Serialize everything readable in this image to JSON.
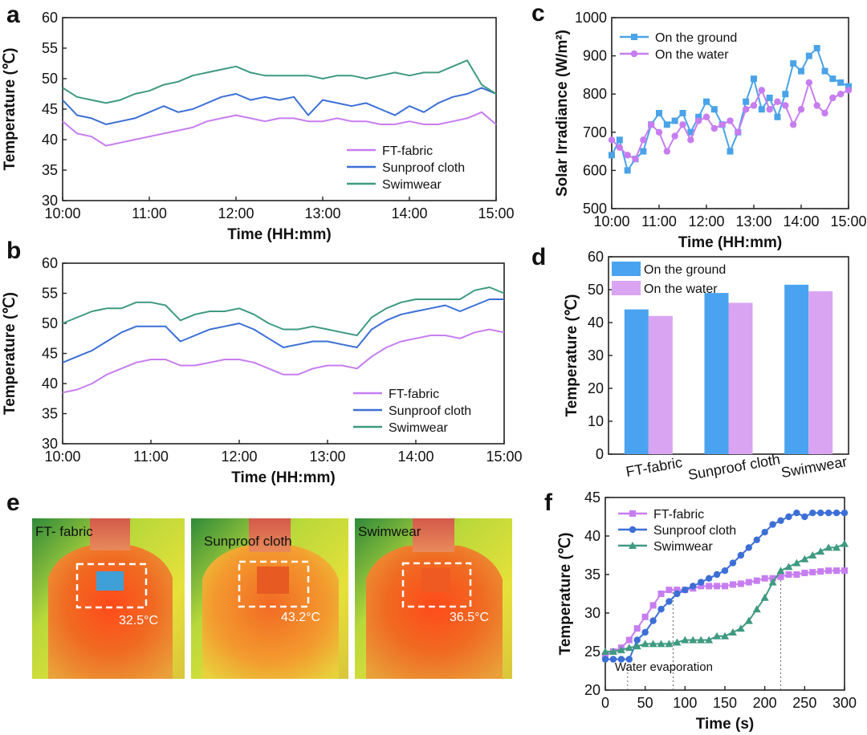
{
  "chart_data": [
    {
      "panel": "a",
      "type": "line",
      "xlabel": "Time (HH:mm)",
      "ylabel": "Temperature (℃)",
      "xticks": [
        "10:00",
        "11:00",
        "12:00",
        "13:00",
        "14:00",
        "15:00"
      ],
      "xlim": [
        0,
        300
      ],
      "ylim": [
        30,
        60
      ],
      "yticks": [
        30,
        35,
        40,
        45,
        50,
        55,
        60
      ],
      "legend_position": "bottom-right",
      "series": [
        {
          "name": "FT-fabric",
          "color": "#c77df0",
          "x": [
            0,
            10,
            20,
            30,
            40,
            50,
            60,
            70,
            80,
            90,
            100,
            110,
            120,
            130,
            140,
            150,
            160,
            170,
            180,
            190,
            200,
            210,
            220,
            230,
            240,
            250,
            260,
            270,
            280,
            290,
            300
          ],
          "y": [
            43,
            41,
            40.5,
            39,
            39.5,
            40,
            40.5,
            41,
            41.5,
            42,
            43,
            43.5,
            44,
            43.5,
            43,
            43.5,
            43.5,
            43,
            43,
            43.5,
            43,
            43,
            42.5,
            42.5,
            43,
            42.5,
            42.5,
            43,
            43.5,
            44.5,
            42.5
          ]
        },
        {
          "name": "Sunproof cloth",
          "color": "#3c6fd6",
          "x": [
            0,
            10,
            20,
            30,
            40,
            50,
            60,
            70,
            80,
            90,
            100,
            110,
            120,
            130,
            140,
            150,
            160,
            170,
            180,
            190,
            200,
            210,
            220,
            230,
            240,
            250,
            260,
            270,
            280,
            290,
            300
          ],
          "y": [
            46.5,
            44,
            43.5,
            42.5,
            43,
            43.5,
            44.5,
            45.5,
            44.5,
            45,
            46,
            47,
            47.5,
            46.5,
            47,
            46.5,
            47,
            44,
            46.5,
            46,
            45.5,
            46,
            45,
            44,
            45.5,
            44.5,
            46,
            47,
            47.5,
            48.5,
            47.5
          ]
        },
        {
          "name": "Swimwear",
          "color": "#3e9a80",
          "x": [
            0,
            10,
            20,
            30,
            40,
            50,
            60,
            70,
            80,
            90,
            100,
            110,
            120,
            130,
            140,
            150,
            160,
            170,
            180,
            190,
            200,
            210,
            220,
            230,
            240,
            250,
            260,
            270,
            280,
            290,
            300
          ],
          "y": [
            48.5,
            47,
            46.5,
            46,
            46.5,
            47.5,
            48,
            49,
            49.5,
            50.5,
            51,
            51.5,
            52,
            51,
            50.5,
            50.5,
            50.5,
            50.5,
            50,
            50.5,
            50.5,
            50,
            50.5,
            51,
            50.5,
            51,
            51,
            52,
            53,
            49,
            47.5
          ]
        }
      ]
    },
    {
      "panel": "b",
      "type": "line",
      "xlabel": "Time (HH:mm)",
      "ylabel": "Temperature (℃)",
      "xticks": [
        "10:00",
        "11:00",
        "12:00",
        "13:00",
        "14:00",
        "15:00"
      ],
      "xlim": [
        0,
        300
      ],
      "ylim": [
        30,
        60
      ],
      "yticks": [
        30,
        35,
        40,
        45,
        50,
        55,
        60
      ],
      "legend_position": "bottom-right",
      "series": [
        {
          "name": "FT-fabric",
          "color": "#c77df0",
          "x": [
            0,
            10,
            20,
            30,
            40,
            50,
            60,
            70,
            80,
            90,
            100,
            110,
            120,
            130,
            140,
            150,
            160,
            170,
            180,
            190,
            200,
            210,
            220,
            230,
            240,
            250,
            260,
            270,
            280,
            290,
            300
          ],
          "y": [
            38.5,
            39,
            40,
            41.5,
            42.5,
            43.5,
            44,
            44,
            43,
            43,
            43.5,
            44,
            44,
            43.5,
            42.5,
            41.5,
            41.5,
            42.5,
            43,
            43,
            42.5,
            44.5,
            46,
            47,
            47.5,
            48,
            48,
            47.5,
            48.5,
            49,
            48.5
          ]
        },
        {
          "name": "Sunproof cloth",
          "color": "#3c6fd6",
          "x": [
            0,
            10,
            20,
            30,
            40,
            50,
            60,
            70,
            80,
            90,
            100,
            110,
            120,
            130,
            140,
            150,
            160,
            170,
            180,
            190,
            200,
            210,
            220,
            230,
            240,
            250,
            260,
            270,
            280,
            290,
            300
          ],
          "y": [
            43.5,
            44.5,
            45.5,
            47,
            48.5,
            49.5,
            49.5,
            49.5,
            47,
            48,
            49,
            49.5,
            50,
            49,
            47.5,
            46,
            46.5,
            47,
            47,
            46.5,
            46,
            49,
            50.5,
            51.5,
            52,
            52.5,
            53,
            52,
            53,
            54,
            54
          ]
        },
        {
          "name": "Swimwear",
          "color": "#3e9a80",
          "x": [
            0,
            10,
            20,
            30,
            40,
            50,
            60,
            70,
            80,
            90,
            100,
            110,
            120,
            130,
            140,
            150,
            160,
            170,
            180,
            190,
            200,
            210,
            220,
            230,
            240,
            250,
            260,
            270,
            280,
            290,
            300
          ],
          "y": [
            50,
            51,
            52,
            52.5,
            52.5,
            53.5,
            53.5,
            53,
            50.5,
            51.5,
            52,
            52,
            52.5,
            51.5,
            50,
            49,
            49,
            49.5,
            49,
            48.5,
            48,
            51,
            52.5,
            53.5,
            54,
            54,
            54,
            54,
            55.5,
            56,
            55
          ]
        }
      ]
    },
    {
      "panel": "c",
      "type": "line",
      "xlabel": "Time (HH:mm)",
      "ylabel": "Solar Irradiance (W/m²)",
      "xticks": [
        "10:00",
        "11:00",
        "12:00",
        "13:00",
        "14:00",
        "15:00"
      ],
      "xlim": [
        0,
        300
      ],
      "ylim": [
        500,
        1000
      ],
      "yticks": [
        500,
        600,
        700,
        800,
        900,
        1000
      ],
      "legend_position": "top-left",
      "series": [
        {
          "name": "On the ground",
          "color": "#4aa3e8",
          "marker": "square",
          "x": [
            0,
            10,
            20,
            30,
            40,
            50,
            60,
            70,
            80,
            90,
            100,
            110,
            120,
            130,
            140,
            150,
            160,
            170,
            180,
            190,
            200,
            210,
            220,
            230,
            240,
            250,
            260,
            270,
            280,
            290,
            300
          ],
          "y": [
            640,
            680,
            600,
            630,
            650,
            720,
            750,
            720,
            730,
            750,
            700,
            740,
            780,
            760,
            720,
            650,
            700,
            780,
            840,
            760,
            790,
            740,
            800,
            880,
            860,
            900,
            920,
            860,
            840,
            830,
            820
          ]
        },
        {
          "name": "On the water",
          "color": "#c77df0",
          "marker": "circle",
          "x": [
            0,
            10,
            20,
            30,
            40,
            50,
            60,
            70,
            80,
            90,
            100,
            110,
            120,
            130,
            140,
            150,
            160,
            170,
            180,
            190,
            200,
            210,
            220,
            230,
            240,
            250,
            260,
            270,
            280,
            290,
            300
          ],
          "y": [
            680,
            660,
            640,
            630,
            680,
            720,
            700,
            650,
            690,
            720,
            680,
            730,
            740,
            710,
            720,
            730,
            700,
            760,
            770,
            810,
            760,
            780,
            770,
            720,
            760,
            830,
            770,
            750,
            790,
            800,
            810
          ]
        }
      ]
    },
    {
      "panel": "d",
      "type": "bar",
      "ylabel": "Temperature (℃)",
      "ylim": [
        0,
        60
      ],
      "yticks": [
        0,
        10,
        20,
        30,
        40,
        50,
        60
      ],
      "categories": [
        "FT-fabric",
        "Sunproof cloth",
        "Swimwear"
      ],
      "legend_position": "top-left",
      "series": [
        {
          "name": "On the ground",
          "color": "#4aa3f0",
          "values": [
            44,
            49,
            51.5
          ]
        },
        {
          "name": "On the water",
          "color": "#d9a4f2",
          "values": [
            42,
            46,
            49.5
          ]
        }
      ]
    },
    {
      "panel": "f",
      "type": "line",
      "xlabel": "Time (s)",
      "ylabel": "Temperature (℃)",
      "xlim": [
        0,
        300
      ],
      "xticks": [
        0,
        50,
        100,
        150,
        200,
        250,
        300
      ],
      "ylim": [
        20,
        45
      ],
      "yticks": [
        20,
        25,
        30,
        35,
        40,
        45
      ],
      "legend_position": "top-left",
      "annotation": "Water evaporation",
      "markers_x": [
        28,
        85,
        220
      ],
      "series": [
        {
          "name": "FT-fabric",
          "color": "#c77df0",
          "marker": "square",
          "x": [
            0,
            10,
            20,
            30,
            40,
            50,
            60,
            70,
            80,
            90,
            100,
            110,
            120,
            130,
            140,
            150,
            160,
            170,
            180,
            190,
            200,
            210,
            220,
            230,
            240,
            250,
            260,
            270,
            280,
            290,
            300
          ],
          "y": [
            24.5,
            25,
            25.5,
            26.5,
            28,
            29.5,
            31,
            32.5,
            33,
            33,
            33,
            33.2,
            33.5,
            33.5,
            33.5,
            33.5,
            33.7,
            33.8,
            34,
            34.2,
            34.5,
            34.5,
            34.7,
            35,
            35,
            35.2,
            35.3,
            35.4,
            35.5,
            35.5,
            35.5
          ]
        },
        {
          "name": "Sunproof cloth",
          "color": "#3c6fd6",
          "marker": "circle",
          "x": [
            0,
            10,
            20,
            30,
            40,
            50,
            60,
            70,
            80,
            90,
            100,
            110,
            120,
            130,
            140,
            150,
            160,
            170,
            180,
            190,
            200,
            210,
            220,
            230,
            240,
            250,
            260,
            270,
            280,
            290,
            300
          ],
          "y": [
            24,
            24,
            24,
            24,
            26.5,
            27.5,
            29,
            30.5,
            31.5,
            32.5,
            33,
            33.5,
            34,
            34.5,
            35,
            35.5,
            36.5,
            37.5,
            38.5,
            39.5,
            40.5,
            41.5,
            42,
            42.5,
            43,
            42.5,
            43,
            43,
            43,
            43,
            43
          ]
        },
        {
          "name": "Swimwear",
          "color": "#3e9a80",
          "marker": "triangle",
          "x": [
            0,
            10,
            20,
            30,
            40,
            50,
            60,
            70,
            80,
            90,
            100,
            110,
            120,
            130,
            140,
            150,
            160,
            170,
            180,
            190,
            200,
            210,
            220,
            230,
            240,
            250,
            260,
            270,
            280,
            290,
            300
          ],
          "y": [
            25,
            25,
            25.2,
            25.5,
            25.7,
            26,
            26,
            26,
            26,
            26.2,
            26.5,
            26.5,
            26.5,
            26.5,
            27,
            27,
            27.5,
            28,
            29,
            30.5,
            32,
            34,
            35.5,
            36,
            36.5,
            37,
            37.5,
            38,
            38.5,
            38.5,
            39
          ]
        }
      ]
    }
  ],
  "panel_e": {
    "letter": "e",
    "images": [
      {
        "label": "FT- fabric",
        "temperature": "32.5°C"
      },
      {
        "label": "Sunproof cloth",
        "temperature": "43.2°C"
      },
      {
        "label": "Swimwear",
        "temperature": "36.5°C"
      }
    ]
  }
}
